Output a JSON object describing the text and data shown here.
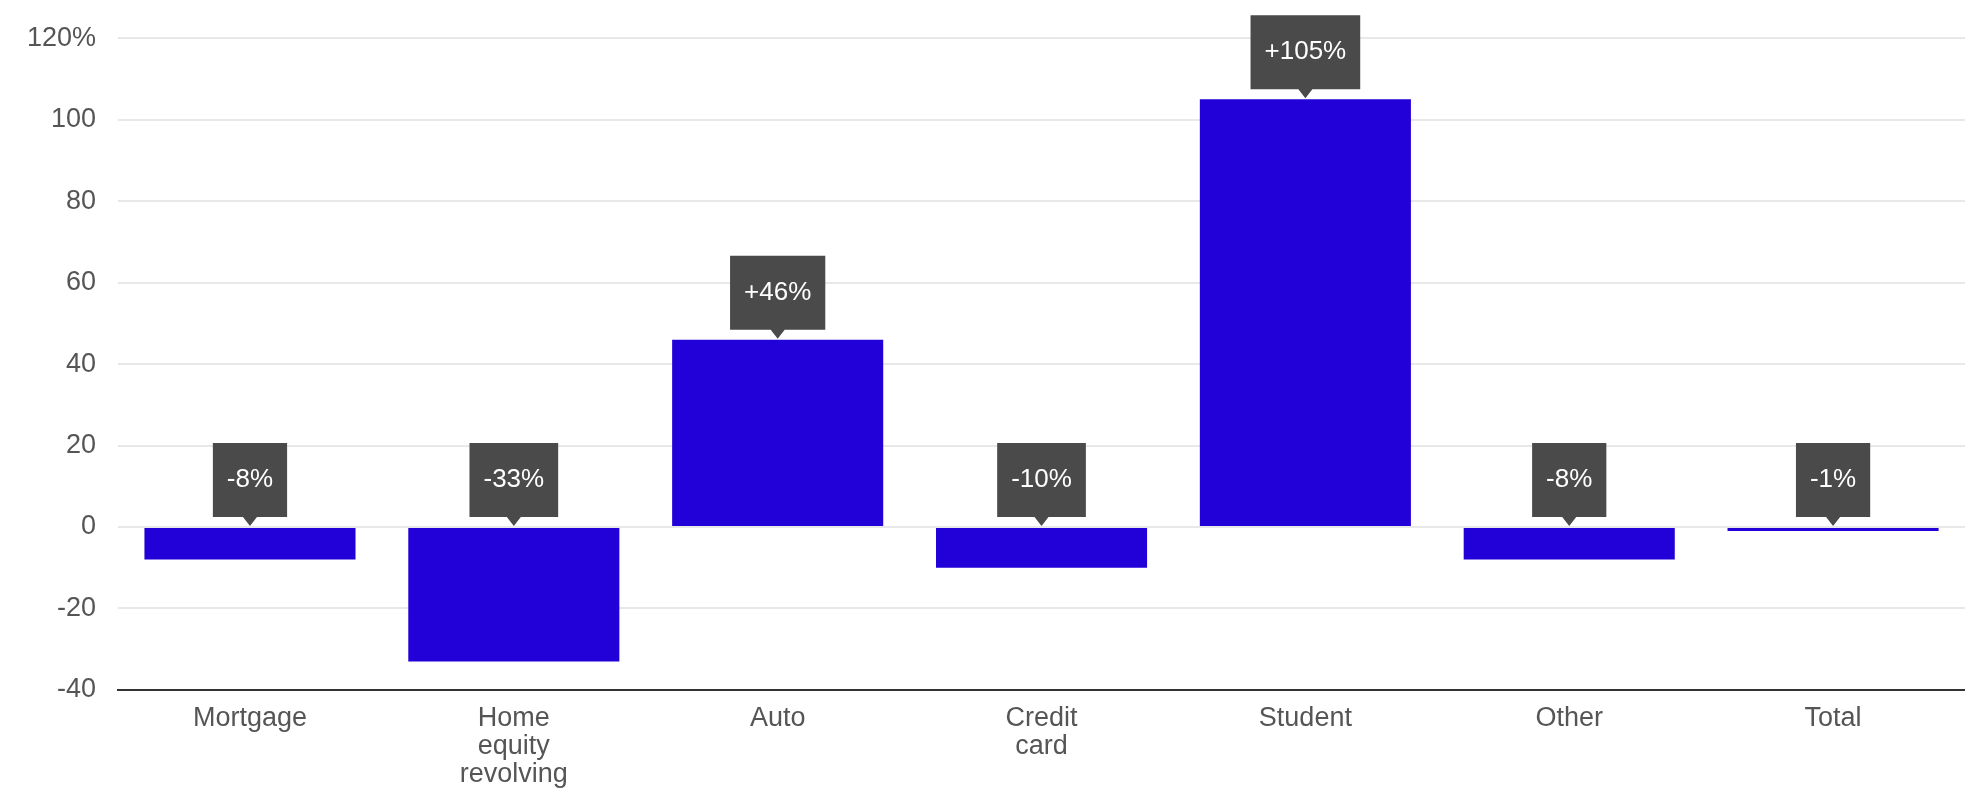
{
  "chart_data": {
    "type": "bar",
    "categories": [
      "Mortgage",
      "Home equity revolving",
      "Auto",
      "Credit card",
      "Student",
      "Other",
      "Total"
    ],
    "values": [
      -8,
      -33,
      46,
      -10,
      105,
      -8,
      -1
    ],
    "value_labels": [
      "-8%",
      "-33%",
      "+46%",
      "-10%",
      "+105%",
      "-8%",
      "-1%"
    ],
    "color": "#2200d8",
    "ylim": [
      -40,
      120
    ],
    "yticks": [
      -40,
      -20,
      0,
      20,
      40,
      60,
      80,
      100,
      {
        "value": 120,
        "label": "120%"
      }
    ],
    "grid": "y"
  }
}
